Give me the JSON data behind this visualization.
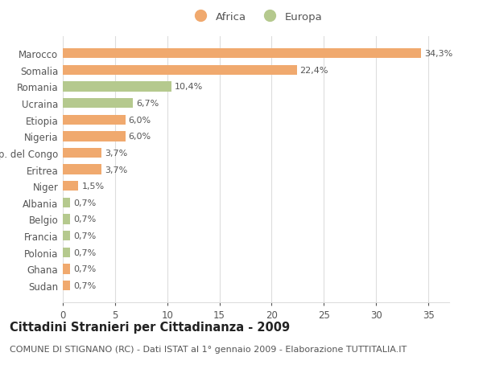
{
  "categories": [
    "Sudan",
    "Ghana",
    "Polonia",
    "Francia",
    "Belgio",
    "Albania",
    "Niger",
    "Eritrea",
    "Rep. del Congo",
    "Nigeria",
    "Etiopia",
    "Ucraina",
    "Romania",
    "Somalia",
    "Marocco"
  ],
  "values": [
    0.7,
    0.7,
    0.7,
    0.7,
    0.7,
    0.7,
    1.5,
    3.7,
    3.7,
    6.0,
    6.0,
    6.7,
    10.4,
    22.4,
    34.3
  ],
  "colors": [
    "#f0a96e",
    "#f0a96e",
    "#b5c98e",
    "#b5c98e",
    "#b5c98e",
    "#b5c98e",
    "#f0a96e",
    "#f0a96e",
    "#f0a96e",
    "#f0a96e",
    "#f0a96e",
    "#b5c98e",
    "#b5c98e",
    "#f0a96e",
    "#f0a96e"
  ],
  "labels": [
    "0,7%",
    "0,7%",
    "0,7%",
    "0,7%",
    "0,7%",
    "0,7%",
    "1,5%",
    "3,7%",
    "3,7%",
    "6,0%",
    "6,0%",
    "6,7%",
    "10,4%",
    "22,4%",
    "34,3%"
  ],
  "legend_africa_color": "#f0a96e",
  "legend_europa_color": "#b5c98e",
  "legend_africa_label": "Africa",
  "legend_europa_label": "Europa",
  "title": "Cittadini Stranieri per Cittadinanza - 2009",
  "subtitle": "COMUNE DI STIGNANO (RC) - Dati ISTAT al 1° gennaio 2009 - Elaborazione TUTTITALIA.IT",
  "xlim": [
    0,
    37
  ],
  "xticks": [
    0,
    5,
    10,
    15,
    20,
    25,
    30,
    35
  ],
  "background_color": "#ffffff",
  "grid_color": "#dddddd",
  "bar_height": 0.6,
  "label_fontsize": 8.0,
  "title_fontsize": 10.5,
  "subtitle_fontsize": 8.0,
  "ytick_fontsize": 8.5,
  "xtick_fontsize": 8.5
}
